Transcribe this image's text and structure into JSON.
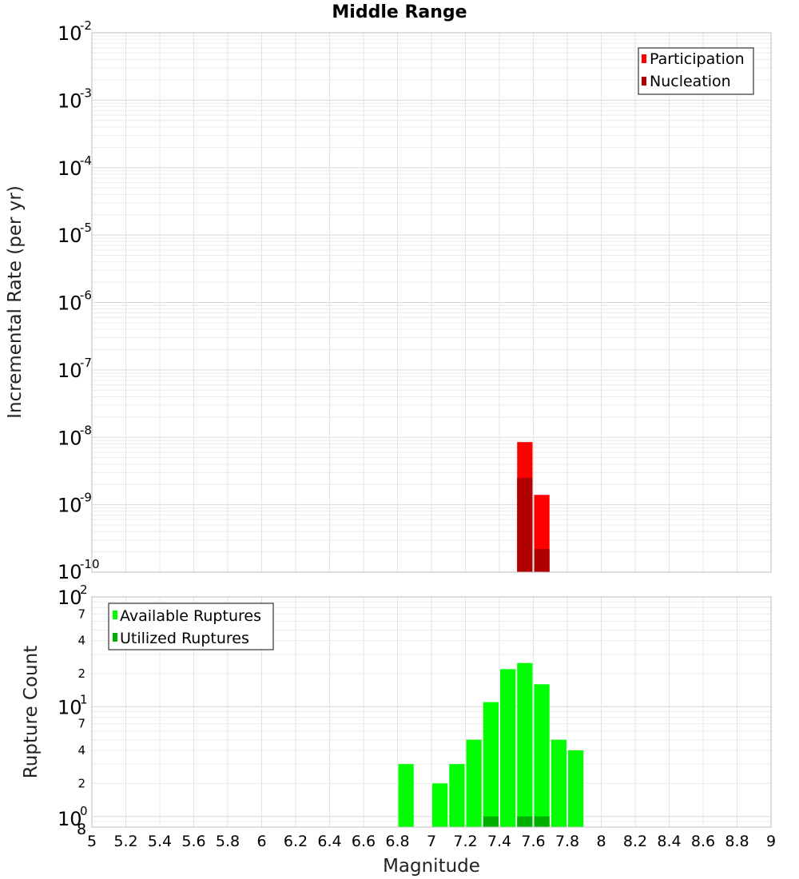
{
  "chart_data": [
    {
      "type": "bar",
      "title": "Middle Range",
      "xlabel": "",
      "ylabel": "Incremental Rate (per yr)",
      "y_scale": "log",
      "ylim": [
        1e-10,
        0.01
      ],
      "xlim": [
        5,
        9
      ],
      "y_tick_labels": [
        {
          "base": "10",
          "exp": "-10"
        },
        {
          "base": "10",
          "exp": "-9"
        },
        {
          "base": "10",
          "exp": "-8"
        },
        {
          "base": "10",
          "exp": "-7"
        },
        {
          "base": "10",
          "exp": "-6"
        },
        {
          "base": "10",
          "exp": "-5"
        },
        {
          "base": "10",
          "exp": "-4"
        },
        {
          "base": "10",
          "exp": "-3"
        },
        {
          "base": "10",
          "exp": "-2"
        }
      ],
      "grid": true,
      "legend_position": "top-right",
      "series": [
        {
          "name": "Participation",
          "color": "#ff0000",
          "points": [
            {
              "x": 7.55,
              "y": 8.5e-09
            },
            {
              "x": 7.65,
              "y": 1.4e-09
            }
          ]
        },
        {
          "name": "Nucleation",
          "color": "#b00000",
          "points": [
            {
              "x": 7.55,
              "y": 2.5e-09
            },
            {
              "x": 7.65,
              "y": 2.2e-10
            }
          ]
        }
      ]
    },
    {
      "type": "bar",
      "xlabel": "Magnitude",
      "ylabel": "Rupture Count",
      "y_scale": "log",
      "ylim": [
        0.8,
        100
      ],
      "xlim": [
        5,
        9
      ],
      "x_tick_labels": [
        "5",
        "5.2",
        "5.4",
        "5.6",
        "5.8",
        "6",
        "6.2",
        "6.4",
        "6.6",
        "6.8",
        "7",
        "7.2",
        "7.4",
        "7.6",
        "7.8",
        "8",
        "8.2",
        "8.4",
        "8.6",
        "8.8",
        "9"
      ],
      "y_tick_labels": {
        "major": [
          {
            "base": "10",
            "exp": "0",
            "value": 1
          },
          {
            "base": "10",
            "exp": "1",
            "value": 10
          },
          {
            "base": "10",
            "exp": "2",
            "value": 100
          }
        ],
        "minor": [
          {
            "label": "2",
            "value": 2
          },
          {
            "label": "4",
            "value": 4
          },
          {
            "label": "7",
            "value": 7
          },
          {
            "label": "2",
            "value": 20
          },
          {
            "label": "4",
            "value": 40
          },
          {
            "label": "7",
            "value": 70
          }
        ],
        "bottom_label": "8"
      },
      "grid": true,
      "legend_position": "top-left",
      "series": [
        {
          "name": "Available Ruptures",
          "color": "#00ff00",
          "points": [
            {
              "x": 6.85,
              "y": 3
            },
            {
              "x": 7.05,
              "y": 2
            },
            {
              "x": 7.15,
              "y": 3
            },
            {
              "x": 7.25,
              "y": 5
            },
            {
              "x": 7.35,
              "y": 11
            },
            {
              "x": 7.45,
              "y": 22
            },
            {
              "x": 7.55,
              "y": 25
            },
            {
              "x": 7.65,
              "y": 16
            },
            {
              "x": 7.75,
              "y": 5
            },
            {
              "x": 7.85,
              "y": 4
            }
          ]
        },
        {
          "name": "Utilized Ruptures",
          "color": "#00b000",
          "points": [
            {
              "x": 7.35,
              "y": 1
            },
            {
              "x": 7.55,
              "y": 1
            },
            {
              "x": 7.65,
              "y": 1
            }
          ]
        }
      ]
    }
  ]
}
